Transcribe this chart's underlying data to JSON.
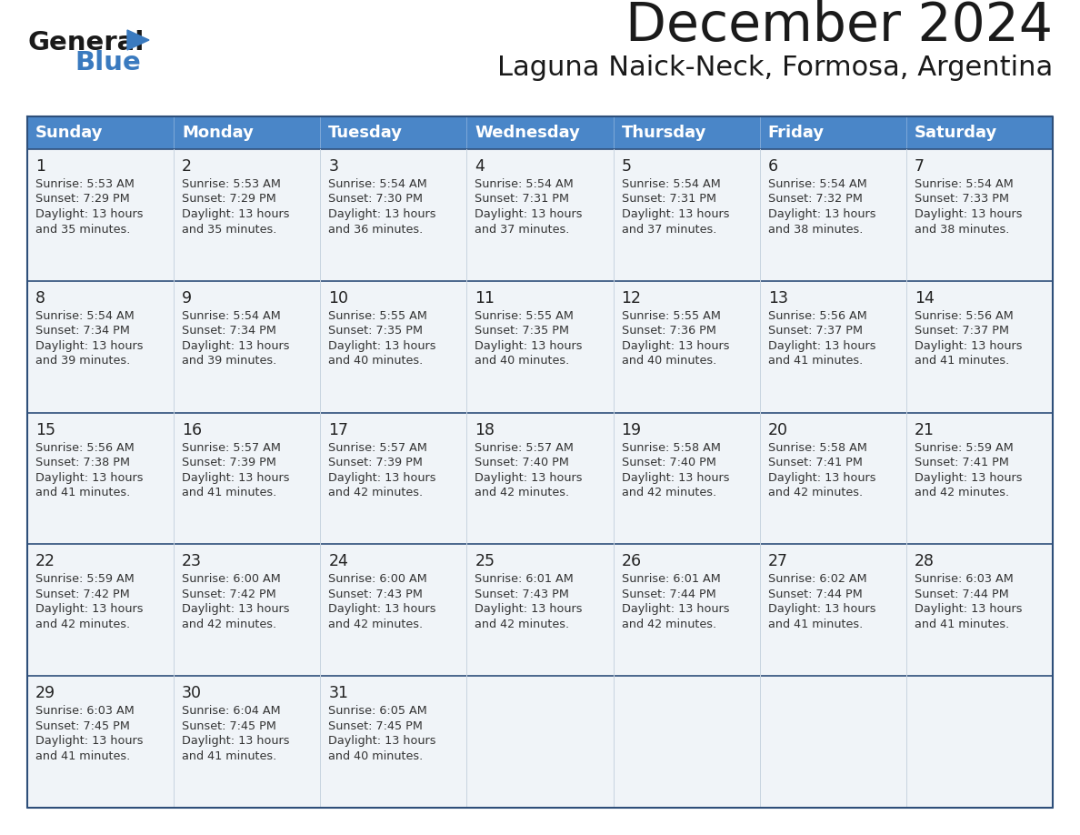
{
  "title": "December 2024",
  "subtitle": "Laguna Naick-Neck, Formosa, Argentina",
  "days_of_week": [
    "Sunday",
    "Monday",
    "Tuesday",
    "Wednesday",
    "Thursday",
    "Friday",
    "Saturday"
  ],
  "header_bg": "#4a86c8",
  "header_text_color": "#ffffff",
  "cell_bg": "#f0f4f8",
  "cell_bg_empty": "#f0f4f8",
  "row_border_color": "#2e4f7a",
  "col_border_color": "#c8d4e0",
  "title_color": "#1a1a1a",
  "subtitle_color": "#1a1a1a",
  "day_num_color": "#222222",
  "cell_text_color": "#333333",
  "calendar_data": [
    [
      {
        "day": 1,
        "sunrise": "5:53 AM",
        "sunset": "7:29 PM",
        "daylight_mins": "35"
      },
      {
        "day": 2,
        "sunrise": "5:53 AM",
        "sunset": "7:29 PM",
        "daylight_mins": "35"
      },
      {
        "day": 3,
        "sunrise": "5:54 AM",
        "sunset": "7:30 PM",
        "daylight_mins": "36"
      },
      {
        "day": 4,
        "sunrise": "5:54 AM",
        "sunset": "7:31 PM",
        "daylight_mins": "37"
      },
      {
        "day": 5,
        "sunrise": "5:54 AM",
        "sunset": "7:31 PM",
        "daylight_mins": "37"
      },
      {
        "day": 6,
        "sunrise": "5:54 AM",
        "sunset": "7:32 PM",
        "daylight_mins": "38"
      },
      {
        "day": 7,
        "sunrise": "5:54 AM",
        "sunset": "7:33 PM",
        "daylight_mins": "38"
      }
    ],
    [
      {
        "day": 8,
        "sunrise": "5:54 AM",
        "sunset": "7:34 PM",
        "daylight_mins": "39"
      },
      {
        "day": 9,
        "sunrise": "5:54 AM",
        "sunset": "7:34 PM",
        "daylight_mins": "39"
      },
      {
        "day": 10,
        "sunrise": "5:55 AM",
        "sunset": "7:35 PM",
        "daylight_mins": "40"
      },
      {
        "day": 11,
        "sunrise": "5:55 AM",
        "sunset": "7:35 PM",
        "daylight_mins": "40"
      },
      {
        "day": 12,
        "sunrise": "5:55 AM",
        "sunset": "7:36 PM",
        "daylight_mins": "40"
      },
      {
        "day": 13,
        "sunrise": "5:56 AM",
        "sunset": "7:37 PM",
        "daylight_mins": "41"
      },
      {
        "day": 14,
        "sunrise": "5:56 AM",
        "sunset": "7:37 PM",
        "daylight_mins": "41"
      }
    ],
    [
      {
        "day": 15,
        "sunrise": "5:56 AM",
        "sunset": "7:38 PM",
        "daylight_mins": "41"
      },
      {
        "day": 16,
        "sunrise": "5:57 AM",
        "sunset": "7:39 PM",
        "daylight_mins": "41"
      },
      {
        "day": 17,
        "sunrise": "5:57 AM",
        "sunset": "7:39 PM",
        "daylight_mins": "42"
      },
      {
        "day": 18,
        "sunrise": "5:57 AM",
        "sunset": "7:40 PM",
        "daylight_mins": "42"
      },
      {
        "day": 19,
        "sunrise": "5:58 AM",
        "sunset": "7:40 PM",
        "daylight_mins": "42"
      },
      {
        "day": 20,
        "sunrise": "5:58 AM",
        "sunset": "7:41 PM",
        "daylight_mins": "42"
      },
      {
        "day": 21,
        "sunrise": "5:59 AM",
        "sunset": "7:41 PM",
        "daylight_mins": "42"
      }
    ],
    [
      {
        "day": 22,
        "sunrise": "5:59 AM",
        "sunset": "7:42 PM",
        "daylight_mins": "42"
      },
      {
        "day": 23,
        "sunrise": "6:00 AM",
        "sunset": "7:42 PM",
        "daylight_mins": "42"
      },
      {
        "day": 24,
        "sunrise": "6:00 AM",
        "sunset": "7:43 PM",
        "daylight_mins": "42"
      },
      {
        "day": 25,
        "sunrise": "6:01 AM",
        "sunset": "7:43 PM",
        "daylight_mins": "42"
      },
      {
        "day": 26,
        "sunrise": "6:01 AM",
        "sunset": "7:44 PM",
        "daylight_mins": "42"
      },
      {
        "day": 27,
        "sunrise": "6:02 AM",
        "sunset": "7:44 PM",
        "daylight_mins": "41"
      },
      {
        "day": 28,
        "sunrise": "6:03 AM",
        "sunset": "7:44 PM",
        "daylight_mins": "41"
      }
    ],
    [
      {
        "day": 29,
        "sunrise": "6:03 AM",
        "sunset": "7:45 PM",
        "daylight_mins": "41"
      },
      {
        "day": 30,
        "sunrise": "6:04 AM",
        "sunset": "7:45 PM",
        "daylight_mins": "41"
      },
      {
        "day": 31,
        "sunrise": "6:05 AM",
        "sunset": "7:45 PM",
        "daylight_mins": "40"
      },
      null,
      null,
      null,
      null
    ]
  ]
}
